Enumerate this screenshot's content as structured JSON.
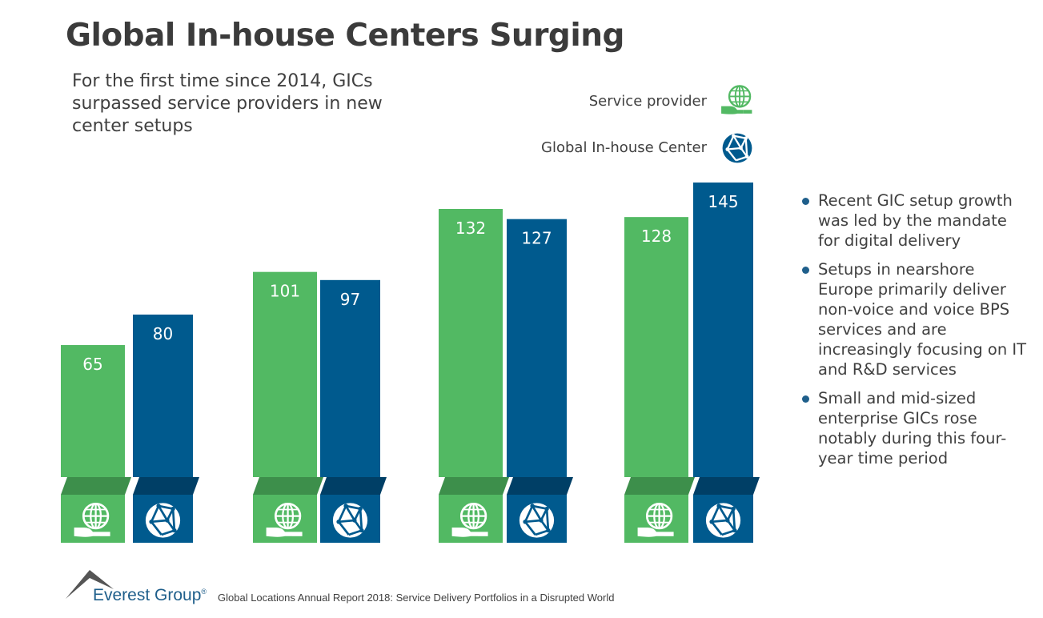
{
  "title": "Global In-house Centers Surging",
  "subtitle": "For the first time since 2014, GICs surpassed service providers in new center setups",
  "legend": [
    {
      "label": "Service provider",
      "icon": "hand-globe-icon",
      "color": "#52b963"
    },
    {
      "label": "Global In-house Center",
      "icon": "network-globe-icon",
      "color": "#005a8e"
    }
  ],
  "chart_data": {
    "type": "bar",
    "categories": [
      "",
      "",
      "",
      ""
    ],
    "series": [
      {
        "name": "Service provider",
        "values": [
          65,
          101,
          132,
          128
        ],
        "color": "#52b963",
        "shade": "#3d8f4b"
      },
      {
        "name": "Global In-house Center",
        "values": [
          80,
          97,
          127,
          145
        ],
        "color": "#005a8e",
        "shade": "#003f66"
      }
    ],
    "ylim": [
      0,
      145
    ],
    "grid": false,
    "legend_placement": "top-right"
  },
  "bullets": [
    "Recent GIC setup growth was led by the mandate for digital delivery",
    "Setups in nearshore Europe primarily deliver non-voice and voice BPS services and are increasingly focusing on IT and R&D services",
    "Small and mid-sized enterprise GICs rose notably during this four-year time period"
  ],
  "footer": {
    "brand": "Everest Group",
    "registered": "®",
    "source": "Global Locations Annual Report 2018: Service Delivery Portfolios in a Disrupted World"
  }
}
